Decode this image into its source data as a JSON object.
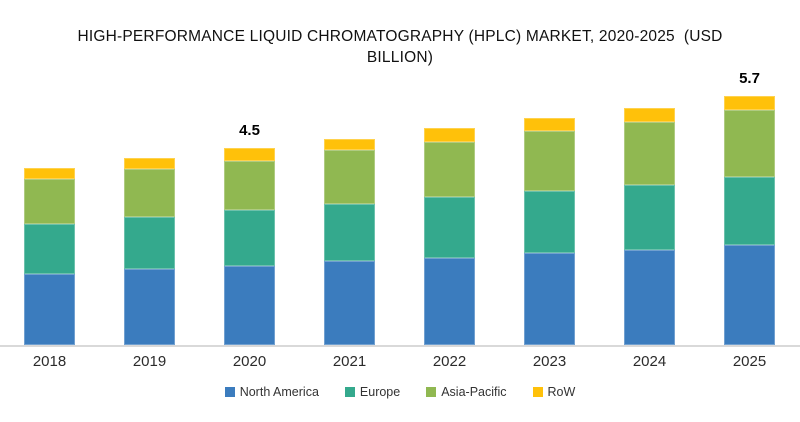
{
  "chart_data": {
    "type": "bar",
    "stacked": true,
    "title": "HIGH-PERFORMANCE LIQUID CHROMATOGRAPHY (HPLC) MARKET, 2020-2025  (USD BILLION)",
    "categories": [
      "2018",
      "2019",
      "2020",
      "2021",
      "2022",
      "2023",
      "2024",
      "2025"
    ],
    "series": [
      {
        "name": "North America",
        "color": "#3B7CBE",
        "values": [
          1.62,
          1.74,
          1.8,
          1.92,
          2.0,
          2.11,
          2.17,
          2.3
        ]
      },
      {
        "name": "Europe",
        "color": "#34A98D",
        "values": [
          1.16,
          1.2,
          1.29,
          1.31,
          1.38,
          1.41,
          1.5,
          1.55
        ]
      },
      {
        "name": "Asia-Pacific",
        "color": "#90B851",
        "values": [
          1.01,
          1.08,
          1.13,
          1.24,
          1.27,
          1.39,
          1.44,
          1.53
        ]
      },
      {
        "name": "RoW",
        "color": "#FFC10A",
        "values": [
          0.27,
          0.26,
          0.28,
          0.25,
          0.32,
          0.29,
          0.31,
          0.32
        ]
      }
    ],
    "annotations": [
      {
        "category": "2020",
        "text": "4.5"
      },
      {
        "category": "2025",
        "text": "5.7"
      }
    ],
    "xlabel": "",
    "ylabel": "",
    "ylim": [
      0,
      6
    ],
    "grid": false,
    "legend_position": "bottom",
    "axis_line_color": "#D9D9D9",
    "background_color": "#FFFFFF"
  }
}
